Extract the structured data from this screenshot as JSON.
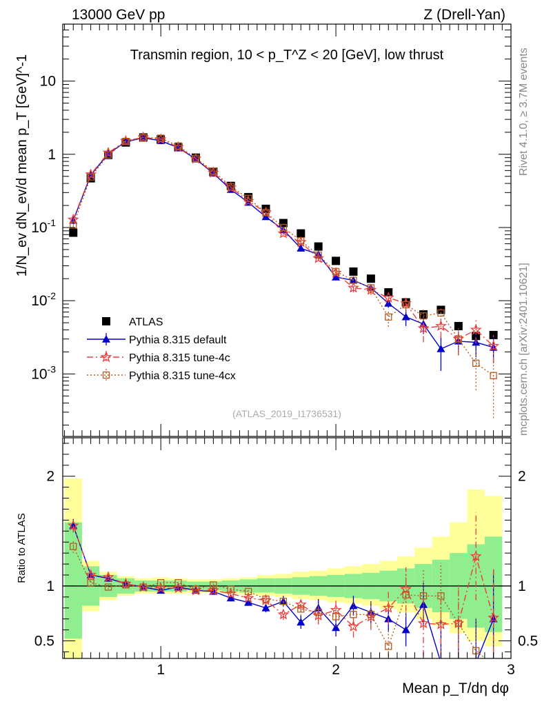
{
  "header": {
    "left_label": "13000 GeV pp",
    "right_label": "Z (Drell-Yan)"
  },
  "side_labels": {
    "rivet": "Rivet 4.1.0, ≥ 3.7M events",
    "mcplots": "mcplots.cern.ch [arXiv:2401.10621]"
  },
  "chart_data": [
    {
      "type": "scatter",
      "panel": "main",
      "title": "Transmin region, 10 < p_T^Z < 20 [GeV], low thrust",
      "watermark": "(ATLAS_2019_I1736531)",
      "ylabel": "1/N_ev dN_ev/d mean p_T [GeV]^-1",
      "yscale": "log",
      "ylim": [
        0.00014,
        60
      ],
      "xlim": [
        0.44,
        3.0
      ],
      "y_ticks": [
        {
          "value": 0.001,
          "label": "10^-3"
        },
        {
          "value": 0.01,
          "label": "10^-2"
        },
        {
          "value": 0.1,
          "label": "10^-1"
        },
        {
          "value": 1,
          "label": "1"
        },
        {
          "value": 10,
          "label": "10"
        }
      ],
      "x": [
        0.5,
        0.6,
        0.7,
        0.8,
        0.9,
        1.0,
        1.1,
        1.2,
        1.3,
        1.4,
        1.5,
        1.6,
        1.7,
        1.8,
        1.9,
        2.0,
        2.1,
        2.2,
        2.3,
        2.4,
        2.5,
        2.6,
        2.7,
        2.8,
        2.9
      ],
      "series": [
        {
          "name": "ATLAS",
          "color": "#000000",
          "marker": "square",
          "values": [
            0.085,
            0.47,
            0.98,
            1.45,
            1.7,
            1.6,
            1.25,
            0.9,
            0.58,
            0.37,
            0.26,
            0.18,
            0.115,
            0.083,
            0.055,
            0.035,
            0.025,
            0.02,
            0.013,
            0.0095,
            0.0065,
            0.0075,
            0.0045,
            0.0033,
            0.0034
          ]
        },
        {
          "name": "Pythia 8.315 default",
          "color": "#0000cc",
          "marker": "triangle",
          "values": [
            0.125,
            0.52,
            1.02,
            1.48,
            1.68,
            1.53,
            1.23,
            0.86,
            0.55,
            0.33,
            0.22,
            0.14,
            0.093,
            0.052,
            0.043,
            0.021,
            0.019,
            0.015,
            0.0092,
            0.006,
            0.0048,
            0.0022,
            0.0028,
            0.0027,
            0.0023
          ],
          "errors": [
            0.006,
            0.01,
            0.015,
            0.02,
            0.02,
            0.02,
            0.015,
            0.01,
            0.008,
            0.006,
            0.005,
            0.004,
            0.003,
            0.002,
            0.002,
            0.0015,
            0.0014,
            0.0012,
            0.0012,
            0.0015,
            0.0013,
            0.0011,
            0.001,
            0.001,
            0.0009
          ]
        },
        {
          "name": "Pythia 8.315 tune-4c",
          "color": "#ee3b3b",
          "marker": "star",
          "values": [
            0.128,
            0.53,
            1.05,
            1.52,
            1.7,
            1.6,
            1.25,
            0.87,
            0.56,
            0.35,
            0.23,
            0.16,
            0.083,
            0.063,
            0.038,
            0.024,
            0.015,
            0.014,
            0.011,
            0.0092,
            0.0042,
            0.0045,
            0.003,
            0.004,
            0.0024
          ],
          "errors": [
            0.006,
            0.01,
            0.015,
            0.02,
            0.02,
            0.02,
            0.015,
            0.01,
            0.008,
            0.006,
            0.005,
            0.004,
            0.003,
            0.003,
            0.003,
            0.002,
            0.002,
            0.002,
            0.0018,
            0.0018,
            0.0015,
            0.0014,
            0.0012,
            0.0014,
            0.001
          ]
        },
        {
          "name": "Pythia 8.315 tune-4cx",
          "color": "#b35a1f",
          "marker": "open-square",
          "values": [
            0.108,
            0.49,
            0.98,
            1.5,
            1.7,
            1.66,
            1.3,
            0.88,
            0.59,
            0.36,
            0.25,
            0.16,
            0.1,
            0.066,
            0.042,
            0.025,
            0.019,
            0.015,
            0.006,
            0.0088,
            0.0062,
            0.0068,
            0.003,
            0.0014,
            0.00095
          ],
          "errors": [
            0.006,
            0.01,
            0.015,
            0.02,
            0.02,
            0.02,
            0.015,
            0.01,
            0.008,
            0.006,
            0.005,
            0.004,
            0.003,
            0.003,
            0.003,
            0.002,
            0.002,
            0.002,
            0.0016,
            0.0018,
            0.0015,
            0.0014,
            0.0012,
            0.0008,
            0.0007
          ]
        }
      ],
      "legend": {
        "position": "bottom-left",
        "entries": [
          "ATLAS",
          "Pythia 8.315 default",
          "Pythia 8.315 tune-4c",
          "Pythia 8.315 tune-4cx"
        ]
      }
    },
    {
      "type": "scatter",
      "panel": "ratio",
      "ylabel": "Ratio to ATLAS",
      "xlabel": "Mean p_T/dη dφ",
      "ylim": [
        0.34,
        2.35
      ],
      "xlim": [
        0.44,
        3.0
      ],
      "reference_line": 1,
      "y_ticks": [
        {
          "value": 0.5,
          "label": "0.5"
        },
        {
          "value": 1,
          "label": "1"
        },
        {
          "value": 2,
          "label": "2"
        }
      ],
      "x_ticks": [
        {
          "value": 1,
          "label": "1"
        },
        {
          "value": 2,
          "label": "2"
        },
        {
          "value": 3,
          "label": "3"
        }
      ],
      "x": [
        0.5,
        0.6,
        0.7,
        0.8,
        0.9,
        1.0,
        1.1,
        1.2,
        1.3,
        1.4,
        1.5,
        1.6,
        1.7,
        1.8,
        1.9,
        2.0,
        2.1,
        2.2,
        2.3,
        2.4,
        2.5,
        2.6,
        2.7,
        2.8,
        2.9
      ],
      "bands": {
        "bin_edges": [
          0.45,
          0.55,
          0.65,
          0.75,
          0.85,
          0.95,
          1.05,
          1.15,
          1.25,
          1.35,
          1.45,
          1.55,
          1.65,
          1.75,
          1.85,
          1.95,
          2.05,
          2.15,
          2.25,
          2.35,
          2.45,
          2.55,
          2.65,
          2.75,
          2.85,
          2.95
        ],
        "inner": [
          [
            0.52,
            1.58
          ],
          [
            0.82,
            1.18
          ],
          [
            0.9,
            1.1
          ],
          [
            0.93,
            1.07
          ],
          [
            0.95,
            1.05
          ],
          [
            0.95,
            1.05
          ],
          [
            0.95,
            1.05
          ],
          [
            0.96,
            1.04
          ],
          [
            0.96,
            1.04
          ],
          [
            0.95,
            1.05
          ],
          [
            0.94,
            1.06
          ],
          [
            0.94,
            1.07
          ],
          [
            0.93,
            1.07
          ],
          [
            0.92,
            1.08
          ],
          [
            0.91,
            1.09
          ],
          [
            0.9,
            1.1
          ],
          [
            0.89,
            1.11
          ],
          [
            0.88,
            1.12
          ],
          [
            0.86,
            1.14
          ],
          [
            0.84,
            1.16
          ],
          [
            0.8,
            1.2
          ],
          [
            0.76,
            1.24
          ],
          [
            0.7,
            1.3
          ],
          [
            0.62,
            1.38
          ],
          [
            0.58,
            1.45
          ]
        ],
        "outer": [
          [
            0.34,
            1.98
          ],
          [
            0.77,
            1.23
          ],
          [
            0.87,
            1.13
          ],
          [
            0.91,
            1.09
          ],
          [
            0.93,
            1.07
          ],
          [
            0.93,
            1.08
          ],
          [
            0.93,
            1.07
          ],
          [
            0.94,
            1.06
          ],
          [
            0.94,
            1.06
          ],
          [
            0.93,
            1.07
          ],
          [
            0.92,
            1.08
          ],
          [
            0.91,
            1.1
          ],
          [
            0.9,
            1.11
          ],
          [
            0.88,
            1.13
          ],
          [
            0.87,
            1.14
          ],
          [
            0.85,
            1.16
          ],
          [
            0.84,
            1.18
          ],
          [
            0.82,
            1.2
          ],
          [
            0.79,
            1.23
          ],
          [
            0.76,
            1.27
          ],
          [
            0.7,
            1.35
          ],
          [
            0.64,
            1.45
          ],
          [
            0.57,
            1.58
          ],
          [
            0.5,
            1.88
          ],
          [
            0.45,
            1.82
          ]
        ]
      },
      "series": [
        {
          "name": "Pythia 8.315 default",
          "color": "#0000cc",
          "marker": "triangle",
          "values": [
            1.55,
            1.1,
            1.07,
            1.02,
            0.99,
            0.96,
            0.99,
            0.96,
            0.95,
            0.89,
            0.85,
            0.8,
            0.86,
            0.67,
            0.8,
            0.62,
            0.82,
            0.76,
            0.7,
            0.6,
            0.83,
            0.3,
            0.3,
            0.3,
            0.7
          ],
          "errors": [
            0.06,
            0.03,
            0.02,
            0.015,
            0.015,
            0.015,
            0.015,
            0.015,
            0.02,
            0.03,
            0.03,
            0.04,
            0.05,
            0.06,
            0.08,
            0.08,
            0.09,
            0.1,
            0.12,
            0.15,
            0.2,
            0.4,
            0.4,
            0.4,
            0.45
          ]
        },
        {
          "name": "Pythia 8.315 tune-4c",
          "color": "#ee3b3b",
          "marker": "star",
          "values": [
            1.55,
            1.1,
            1.08,
            1.02,
            0.99,
            0.98,
            0.98,
            0.96,
            0.96,
            0.93,
            0.89,
            0.87,
            0.74,
            0.83,
            0.73,
            0.78,
            0.63,
            0.72,
            0.8,
            0.97,
            0.66,
            0.65,
            0.66,
            1.27,
            0.71
          ],
          "errors": [
            0.06,
            0.03,
            0.02,
            0.015,
            0.015,
            0.015,
            0.015,
            0.015,
            0.02,
            0.03,
            0.03,
            0.04,
            0.05,
            0.06,
            0.08,
            0.09,
            0.1,
            0.12,
            0.15,
            0.2,
            0.3,
            0.3,
            0.35,
            0.4,
            0.45
          ]
        },
        {
          "name": "Pythia 8.315 tune-4cx",
          "color": "#b35a1f",
          "marker": "open-square",
          "values": [
            1.36,
            1.03,
            0.99,
            1.01,
            0.99,
            1.03,
            1.03,
            0.97,
            1.01,
            0.97,
            0.95,
            0.88,
            0.86,
            0.79,
            0.76,
            0.72,
            0.74,
            0.74,
            0.45,
            0.92,
            0.91,
            0.91,
            0.66,
            0.41,
            0.28
          ],
          "errors": [
            0.06,
            0.03,
            0.02,
            0.015,
            0.015,
            0.015,
            0.015,
            0.015,
            0.02,
            0.03,
            0.03,
            0.04,
            0.05,
            0.06,
            0.08,
            0.09,
            0.1,
            0.12,
            0.15,
            0.2,
            0.25,
            0.3,
            0.35,
            0.3,
            0.25
          ]
        }
      ]
    }
  ]
}
